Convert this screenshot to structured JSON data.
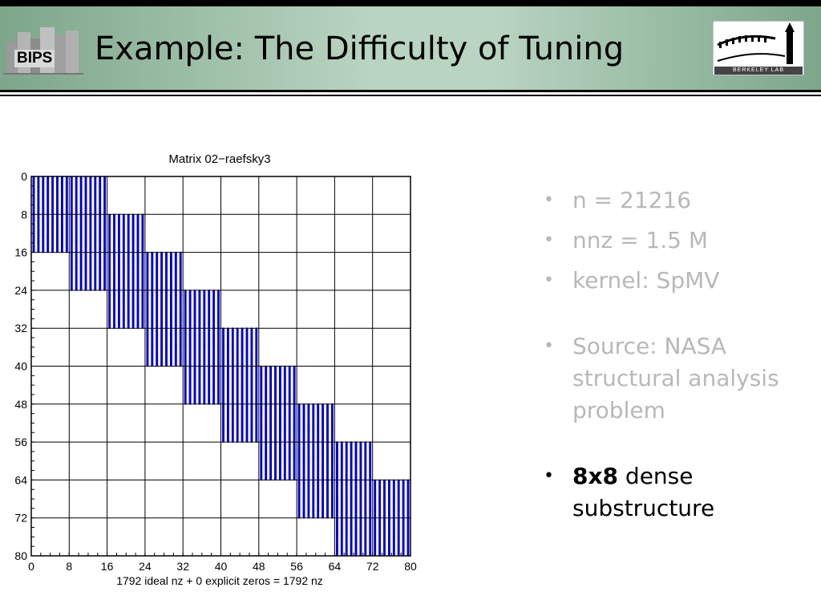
{
  "header": {
    "title": "Example: The Difficulty of Tuning",
    "left_logo_text": "BIPS",
    "right_logo_text": "BERKELEY LAB"
  },
  "bullets": [
    {
      "text": "n = 21216"
    },
    {
      "text": "nnz = 1.5 M"
    },
    {
      "text": "kernel: SpMV"
    },
    {
      "text": "Source: NASA structural analysis problem"
    },
    {
      "bold": "8x8",
      "text": " dense substructure"
    }
  ],
  "chart_data": {
    "type": "spy",
    "title": "Matrix 02−raefsky3",
    "xlabel": "1792 ideal nz + 0 explicit zeros = 1792 nz",
    "xlim": [
      0,
      80
    ],
    "ylim": [
      0,
      80
    ],
    "y_reversed": true,
    "ticks": [
      0,
      8,
      16,
      24,
      32,
      40,
      48,
      56,
      64,
      72,
      80
    ],
    "grid": true,
    "marker_color": "#0000cc",
    "dense_blocks": [
      {
        "rows": [
          0,
          8
        ],
        "cols": [
          0,
          8
        ]
      },
      {
        "rows": [
          0,
          8
        ],
        "cols": [
          8,
          16
        ]
      },
      {
        "rows": [
          8,
          16
        ],
        "cols": [
          0,
          8
        ]
      },
      {
        "rows": [
          8,
          16
        ],
        "cols": [
          8,
          16
        ]
      },
      {
        "rows": [
          8,
          16
        ],
        "cols": [
          16,
          24
        ]
      },
      {
        "rows": [
          16,
          24
        ],
        "cols": [
          8,
          16
        ]
      },
      {
        "rows": [
          16,
          24
        ],
        "cols": [
          16,
          24
        ]
      },
      {
        "rows": [
          16,
          24
        ],
        "cols": [
          24,
          32
        ]
      },
      {
        "rows": [
          24,
          32
        ],
        "cols": [
          16,
          24
        ]
      },
      {
        "rows": [
          24,
          32
        ],
        "cols": [
          24,
          32
        ]
      },
      {
        "rows": [
          24,
          32
        ],
        "cols": [
          32,
          40
        ]
      },
      {
        "rows": [
          32,
          40
        ],
        "cols": [
          24,
          32
        ]
      },
      {
        "rows": [
          32,
          40
        ],
        "cols": [
          32,
          40
        ]
      },
      {
        "rows": [
          32,
          40
        ],
        "cols": [
          40,
          48
        ]
      },
      {
        "rows": [
          40,
          48
        ],
        "cols": [
          32,
          40
        ]
      },
      {
        "rows": [
          40,
          48
        ],
        "cols": [
          40,
          48
        ]
      },
      {
        "rows": [
          40,
          48
        ],
        "cols": [
          48,
          56
        ]
      },
      {
        "rows": [
          48,
          56
        ],
        "cols": [
          40,
          48
        ]
      },
      {
        "rows": [
          48,
          56
        ],
        "cols": [
          48,
          56
        ]
      },
      {
        "rows": [
          48,
          56
        ],
        "cols": [
          56,
          64
        ]
      },
      {
        "rows": [
          56,
          64
        ],
        "cols": [
          48,
          56
        ]
      },
      {
        "rows": [
          56,
          64
        ],
        "cols": [
          56,
          64
        ]
      },
      {
        "rows": [
          56,
          64
        ],
        "cols": [
          64,
          72
        ]
      },
      {
        "rows": [
          64,
          72
        ],
        "cols": [
          56,
          64
        ]
      },
      {
        "rows": [
          64,
          72
        ],
        "cols": [
          64,
          72
        ]
      },
      {
        "rows": [
          64,
          72
        ],
        "cols": [
          72,
          80
        ]
      },
      {
        "rows": [
          72,
          80
        ],
        "cols": [
          64,
          72
        ]
      },
      {
        "rows": [
          72,
          80
        ],
        "cols": [
          72,
          80
        ]
      }
    ]
  }
}
